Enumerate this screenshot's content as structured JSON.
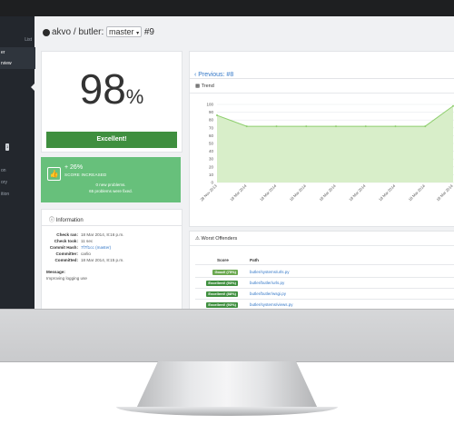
{
  "sidebar": {
    "items": [
      {
        "label": "List",
        "active": false
      },
      {
        "label": "er",
        "active": true
      },
      {
        "label": "rview",
        "active": true
      },
      {
        "label": "on",
        "active": false
      },
      {
        "label": "ory",
        "active": false
      },
      {
        "label": "ition",
        "active": false
      }
    ],
    "badge": "1"
  },
  "header": {
    "owner": "akvo",
    "separator": "/",
    "repo": "butler",
    "colon": ":",
    "branch": "master",
    "branch_caret": "▾",
    "build": "#9"
  },
  "score": {
    "value": "98",
    "unit": "%",
    "grade": "Excellent!"
  },
  "change": {
    "delta": "+ 26%",
    "label": "SCORE INCREASED",
    "new_problems": "0 new problems.",
    "fixed_problems": "65 problems were fixed."
  },
  "info": {
    "title": "Information",
    "rows": [
      {
        "key": "Check ran:",
        "value": "18 Mar 2014, 8:16 p.m."
      },
      {
        "key": "Check took:",
        "value": "11 sec"
      },
      {
        "key": "Commit Hash:",
        "value": "7f7f1cc (master)"
      },
      {
        "key": "Committer:",
        "value": "carlio"
      },
      {
        "key": "Committed:",
        "value": "18 Mar 2014, 8:15 p.m."
      }
    ],
    "message_label": "Message:",
    "message": "Improving logging use"
  },
  "nav": {
    "previous": "Previous: #8"
  },
  "trend": {
    "title": "Trend"
  },
  "chart_data": {
    "type": "area",
    "title": "Trend",
    "x": [
      "28 Nov 2013",
      "18 Mar 2014",
      "18 Mar 2014",
      "18 Mar 2014",
      "18 Mar 2014",
      "18 Mar 2014",
      "18 Mar 2014",
      "18 Mar 2014",
      "18 Mar 2014"
    ],
    "values": [
      86,
      72,
      72,
      72,
      72,
      72,
      72,
      72,
      98
    ],
    "ylim": [
      0,
      100
    ],
    "yticks": [
      0,
      10,
      20,
      30,
      40,
      50,
      60,
      70,
      80,
      90,
      100
    ],
    "grid": true,
    "color": "#8fcf6f"
  },
  "offenders": {
    "title": "Worst Offenders",
    "col_score": "Score",
    "col_path": "Path",
    "rows": [
      {
        "tag": "Good! (75%)",
        "color": "#6aa84f",
        "path": "butler/systems/urls.py"
      },
      {
        "tag": "Excellent! (93%)",
        "color": "#3f8f3f",
        "path": "butler/butler/urls.py"
      },
      {
        "tag": "Excellent! (88%)",
        "color": "#3f8f3f",
        "path": "butler/butler/wsgi.py"
      },
      {
        "tag": "Excellent! (93%)",
        "color": "#3f8f3f",
        "path": "butler/systems/views.py"
      }
    ]
  }
}
